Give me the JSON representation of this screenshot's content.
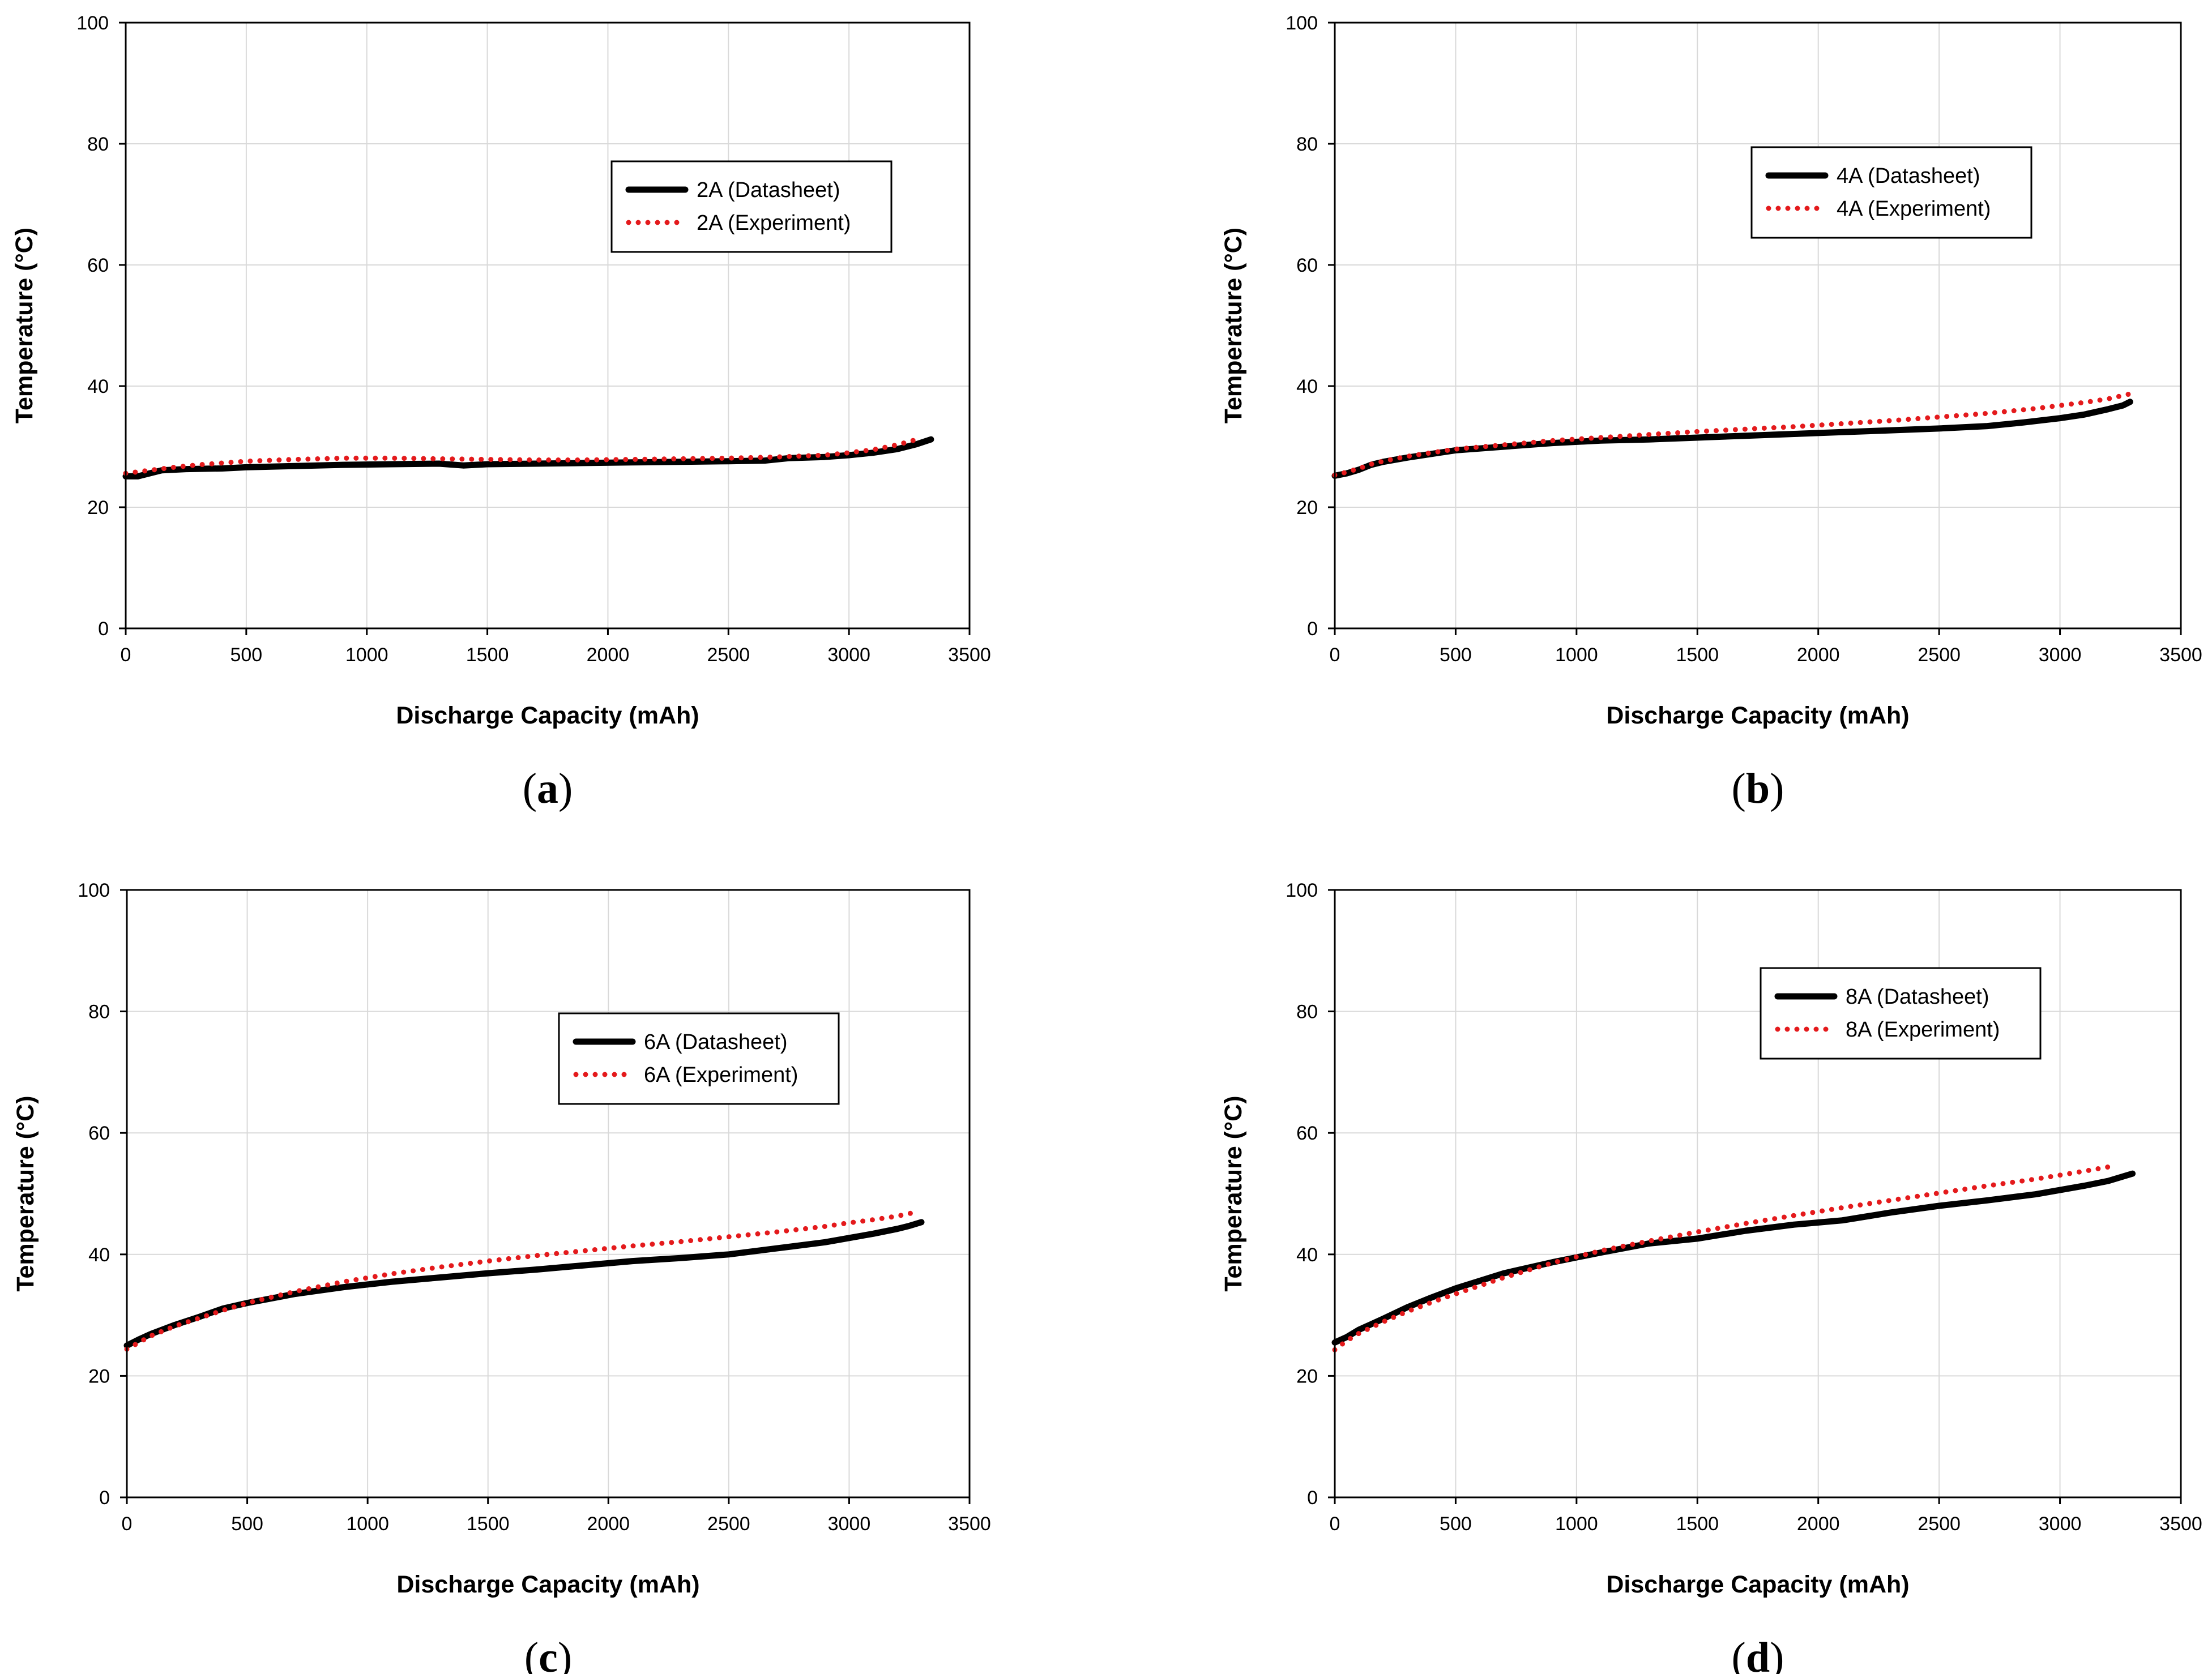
{
  "figure": {
    "colors": {
      "datasheet": "#000000",
      "experiment": "#e41a1c",
      "grid": "#d9d9d9"
    }
  },
  "chart_data": [
    {
      "panel": "a",
      "panel_label": "a",
      "type": "line",
      "xlabel": "Discharge Capacity (mAh)",
      "ylabel": "Temperature (°C)",
      "xlim": [
        0,
        3500
      ],
      "ylim": [
        0,
        100
      ],
      "xticks": [
        0,
        500,
        1000,
        1500,
        2000,
        2500,
        3000,
        3500
      ],
      "yticks": [
        0,
        20,
        40,
        60,
        80,
        100
      ],
      "grid": true,
      "legend": "upper-middle-right",
      "series": [
        {
          "name": "2A (Datasheet)",
          "style": "solid",
          "color": "#000000",
          "x": [
            0,
            50,
            100,
            150,
            250,
            400,
            500,
            700,
            900,
            1100,
            1300,
            1400,
            1500,
            1700,
            1900,
            2100,
            2300,
            2500,
            2650,
            2750,
            2900,
            3000,
            3100,
            3200,
            3280,
            3340
          ],
          "y": [
            25.1,
            25.1,
            25.6,
            26.1,
            26.3,
            26.4,
            26.6,
            26.8,
            27.0,
            27.1,
            27.2,
            26.9,
            27.1,
            27.2,
            27.3,
            27.4,
            27.5,
            27.6,
            27.7,
            28.1,
            28.3,
            28.6,
            29.0,
            29.6,
            30.4,
            31.2
          ]
        },
        {
          "name": "2A (Experiment)",
          "style": "dotted",
          "color": "#e41a1c",
          "x": [
            0,
            100,
            200,
            300,
            400,
            500,
            700,
            900,
            1100,
            1300,
            1500,
            1700,
            1900,
            2100,
            2300,
            2500,
            2700,
            2900,
            3000,
            3100,
            3200,
            3300
          ],
          "y": [
            25.6,
            26.1,
            26.6,
            27.0,
            27.3,
            27.6,
            27.9,
            28.1,
            28.1,
            28.0,
            27.9,
            27.8,
            27.8,
            27.9,
            28.0,
            28.1,
            28.3,
            28.6,
            29.0,
            29.5,
            30.3,
            31.4
          ]
        }
      ]
    },
    {
      "panel": "b",
      "panel_label": "b",
      "type": "line",
      "xlabel": "Discharge Capacity (mAh)",
      "ylabel": "Temperature (°C)",
      "xlim": [
        0,
        3500
      ],
      "ylim": [
        0,
        100
      ],
      "xticks": [
        0,
        500,
        1000,
        1500,
        2000,
        2500,
        3000,
        3500
      ],
      "yticks": [
        0,
        20,
        40,
        60,
        80,
        100
      ],
      "grid": true,
      "legend": "upper-middle-right",
      "series": [
        {
          "name": "4A (Datasheet)",
          "style": "solid",
          "color": "#000000",
          "x": [
            0,
            50,
            100,
            150,
            200,
            300,
            400,
            500,
            700,
            900,
            1100,
            1300,
            1500,
            1700,
            1900,
            2100,
            2300,
            2500,
            2700,
            2850,
            3000,
            3100,
            3200,
            3260,
            3290
          ],
          "y": [
            25.2,
            25.6,
            26.2,
            27.0,
            27.5,
            28.2,
            28.8,
            29.4,
            30.0,
            30.6,
            31.0,
            31.2,
            31.5,
            31.8,
            32.1,
            32.4,
            32.7,
            33.0,
            33.4,
            34.0,
            34.7,
            35.3,
            36.2,
            36.8,
            37.4
          ]
        },
        {
          "name": "4A (Experiment)",
          "style": "dotted",
          "color": "#e41a1c",
          "x": [
            0,
            50,
            100,
            150,
            200,
            300,
            400,
            500,
            700,
            900,
            1100,
            1300,
            1500,
            1700,
            1900,
            2100,
            2300,
            2500,
            2700,
            2900,
            3000,
            3100,
            3200,
            3300
          ],
          "y": [
            25.3,
            25.8,
            26.4,
            27.1,
            27.6,
            28.4,
            29.0,
            29.6,
            30.3,
            31.0,
            31.5,
            32.0,
            32.5,
            32.9,
            33.3,
            33.8,
            34.3,
            34.9,
            35.5,
            36.3,
            36.8,
            37.3,
            37.9,
            38.8
          ]
        }
      ]
    },
    {
      "panel": "c",
      "panel_label": "c",
      "type": "line",
      "xlabel": "Discharge Capacity (mAh)",
      "ylabel": "Temperature (°C)",
      "xlim": [
        0,
        3500
      ],
      "ylim": [
        0,
        100
      ],
      "xticks": [
        0,
        500,
        1000,
        1500,
        2000,
        2500,
        3000,
        3500
      ],
      "yticks": [
        0,
        20,
        40,
        60,
        80,
        100
      ],
      "grid": true,
      "legend": "upper-middle-right",
      "series": [
        {
          "name": "6A (Datasheet)",
          "style": "solid",
          "color": "#000000",
          "x": [
            0,
            50,
            100,
            200,
            300,
            400,
            500,
            700,
            900,
            1100,
            1300,
            1500,
            1700,
            1900,
            2100,
            2300,
            2500,
            2700,
            2900,
            3000,
            3100,
            3200,
            3250,
            3300
          ],
          "y": [
            25.0,
            26.0,
            26.9,
            28.4,
            29.7,
            31.1,
            32.0,
            33.5,
            34.6,
            35.5,
            36.2,
            36.9,
            37.5,
            38.2,
            38.9,
            39.4,
            40.0,
            41.0,
            42.0,
            42.7,
            43.4,
            44.2,
            44.7,
            45.3
          ]
        },
        {
          "name": "6A (Experiment)",
          "style": "dotted",
          "color": "#e41a1c",
          "x": [
            0,
            50,
            100,
            200,
            300,
            400,
            500,
            700,
            900,
            1100,
            1300,
            1500,
            1700,
            1900,
            2100,
            2300,
            2500,
            2700,
            2900,
            3000,
            3100,
            3200,
            3270
          ],
          "y": [
            24.4,
            25.5,
            26.6,
            28.2,
            29.5,
            30.8,
            32.0,
            33.9,
            35.5,
            36.8,
            37.9,
            38.9,
            39.8,
            40.6,
            41.4,
            42.1,
            42.9,
            43.7,
            44.6,
            45.2,
            45.7,
            46.3,
            46.9
          ]
        }
      ]
    },
    {
      "panel": "d",
      "panel_label": "d",
      "type": "line",
      "xlabel": "Discharge Capacity (mAh)",
      "ylabel": "Temperature (°C)",
      "xlim": [
        0,
        3500
      ],
      "ylim": [
        0,
        100
      ],
      "xticks": [
        0,
        500,
        1000,
        1500,
        2000,
        2500,
        3000,
        3500
      ],
      "yticks": [
        0,
        20,
        40,
        60,
        80,
        100
      ],
      "grid": true,
      "legend": "upper-middle-right",
      "series": [
        {
          "name": "8A (Datasheet)",
          "style": "solid",
          "color": "#000000",
          "x": [
            0,
            50,
            100,
            200,
            300,
            400,
            500,
            700,
            900,
            1100,
            1300,
            1500,
            1700,
            1900,
            2100,
            2300,
            2500,
            2700,
            2900,
            3100,
            3200,
            3300
          ],
          "y": [
            25.5,
            26.4,
            27.6,
            29.4,
            31.3,
            32.9,
            34.4,
            36.9,
            38.7,
            40.3,
            41.8,
            42.6,
            43.9,
            44.9,
            45.6,
            46.9,
            48.0,
            48.9,
            49.9,
            51.3,
            52.1,
            53.3
          ]
        },
        {
          "name": "8A (Experiment)",
          "style": "dotted",
          "color": "#e41a1c",
          "x": [
            0,
            50,
            100,
            200,
            300,
            400,
            500,
            700,
            900,
            1100,
            1300,
            1500,
            1700,
            1900,
            2100,
            2300,
            2500,
            2700,
            2900,
            3100,
            3200
          ],
          "y": [
            24.3,
            25.8,
            27.0,
            28.9,
            30.6,
            32.1,
            33.5,
            36.2,
            38.6,
            40.6,
            42.2,
            43.7,
            45.1,
            46.4,
            47.7,
            48.9,
            50.1,
            51.3,
            52.4,
            53.7,
            54.4
          ]
        }
      ]
    }
  ]
}
